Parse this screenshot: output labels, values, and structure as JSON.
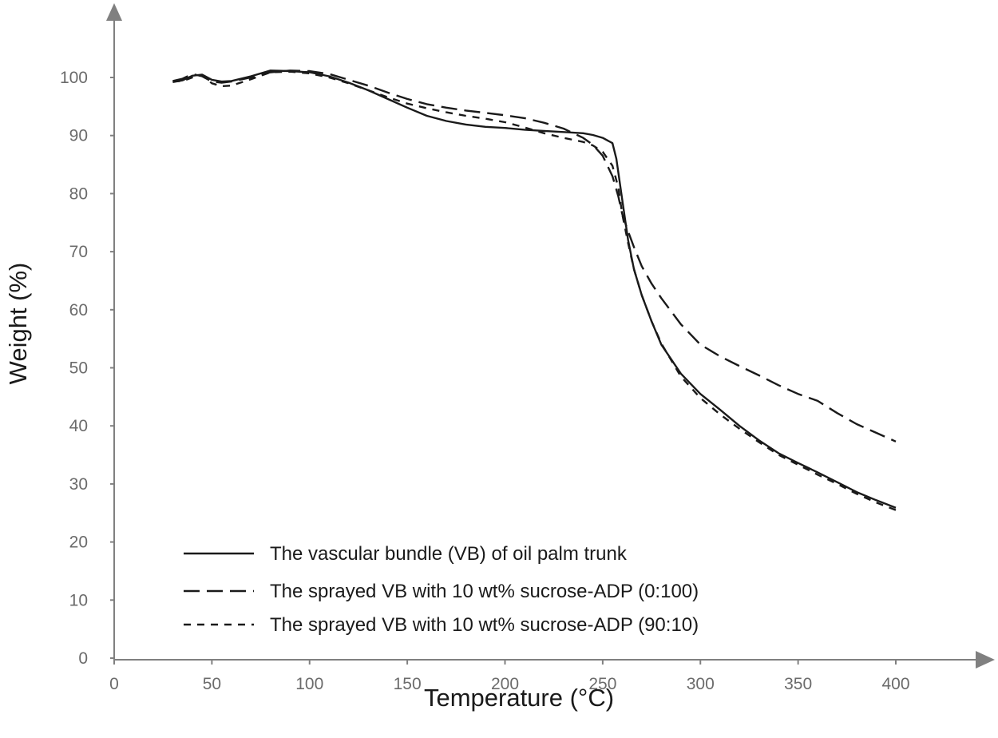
{
  "chart_data": {
    "type": "line",
    "title": "",
    "xlabel": "Temperature (°C)",
    "ylabel": "Weight (%)",
    "xlim": [
      0,
      450
    ],
    "ylim": [
      0,
      110
    ],
    "xticks": [
      0,
      50,
      100,
      150,
      200,
      250,
      300,
      350,
      400
    ],
    "yticks": [
      0,
      10,
      20,
      30,
      40,
      50,
      60,
      70,
      80,
      90,
      100
    ],
    "grid": false,
    "legend_position": "bottom-left",
    "series": [
      {
        "name": "The vascular bundle (VB) of oil palm trunk",
        "style": "solid",
        "color": "#1a1a1a",
        "x": [
          30,
          35,
          40,
          45,
          50,
          55,
          60,
          70,
          80,
          90,
          100,
          110,
          120,
          130,
          140,
          150,
          160,
          170,
          180,
          190,
          200,
          210,
          220,
          230,
          240,
          245,
          250,
          255,
          257,
          260,
          263,
          266,
          270,
          275,
          280,
          290,
          300,
          310,
          320,
          330,
          340,
          350,
          360,
          370,
          380,
          390,
          400
        ],
        "y": [
          99.2,
          99.5,
          100.3,
          100.5,
          99.6,
          99.3,
          99.4,
          100.2,
          101.2,
          101.1,
          100.9,
          100.2,
          99.1,
          97.8,
          96.3,
          94.8,
          93.4,
          92.5,
          91.9,
          91.5,
          91.3,
          91.0,
          90.8,
          90.6,
          90.4,
          90.1,
          89.6,
          88.7,
          86.0,
          79.0,
          72.0,
          67.0,
          62.5,
          58.0,
          54.0,
          49.0,
          45.5,
          42.8,
          40.0,
          37.5,
          35.3,
          33.6,
          32.0,
          30.3,
          28.6,
          27.2,
          25.9
        ]
      },
      {
        "name": "The sprayed VB with 10 wt% sucrose-ADP (0:100)",
        "style": "long-dash",
        "color": "#1a1a1a",
        "x": [
          30,
          35,
          40,
          45,
          50,
          55,
          60,
          70,
          80,
          90,
          100,
          110,
          120,
          130,
          140,
          150,
          160,
          170,
          180,
          190,
          200,
          210,
          220,
          230,
          240,
          245,
          250,
          255,
          258,
          260,
          263,
          266,
          270,
          275,
          280,
          290,
          300,
          310,
          320,
          330,
          340,
          350,
          360,
          370,
          380,
          390,
          400
        ],
        "y": [
          99.4,
          99.8,
          100.6,
          100.2,
          99.3,
          99.1,
          99.3,
          100.0,
          100.9,
          101.2,
          101.1,
          100.6,
          99.6,
          98.6,
          97.4,
          96.3,
          95.4,
          94.8,
          94.3,
          93.9,
          93.5,
          93.0,
          92.2,
          91.2,
          89.6,
          88.4,
          86.5,
          83.0,
          79.5,
          76.5,
          73.5,
          70.8,
          67.5,
          64.5,
          62.0,
          57.5,
          54.0,
          52.0,
          50.3,
          48.7,
          47.0,
          45.5,
          44.3,
          42.2,
          40.3,
          38.8,
          37.3
        ]
      },
      {
        "name": "The sprayed VB with 10 wt% sucrose-ADP (90:10)",
        "style": "short-dash",
        "color": "#1a1a1a",
        "x": [
          30,
          35,
          40,
          45,
          50,
          55,
          60,
          70,
          80,
          90,
          100,
          110,
          120,
          130,
          140,
          150,
          160,
          170,
          180,
          190,
          200,
          210,
          220,
          230,
          240,
          245,
          250,
          255,
          258,
          260,
          263,
          266,
          270,
          275,
          280,
          290,
          300,
          310,
          320,
          330,
          340,
          350,
          360,
          370,
          380,
          390,
          400
        ],
        "y": [
          99.3,
          99.4,
          100.0,
          100.4,
          99.0,
          98.5,
          98.6,
          99.7,
          100.9,
          101.0,
          100.7,
          100.0,
          99.0,
          97.8,
          96.6,
          95.5,
          94.7,
          94.0,
          93.4,
          92.9,
          92.3,
          91.4,
          90.4,
          89.6,
          88.9,
          88.3,
          87.2,
          84.8,
          81.0,
          76.5,
          71.5,
          67.0,
          62.5,
          58.0,
          54.2,
          48.5,
          44.8,
          42.0,
          39.5,
          37.2,
          35.0,
          33.3,
          31.6,
          30.0,
          28.3,
          26.8,
          25.5
        ]
      }
    ]
  }
}
